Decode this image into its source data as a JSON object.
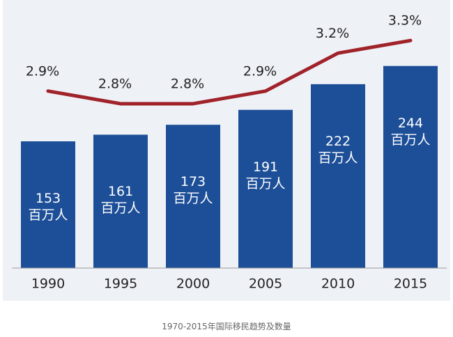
{
  "chart_data": {
    "type": "bar",
    "caption": "1970-2015年国际移民趋势及数量",
    "categories": [
      "1990",
      "1995",
      "2000",
      "2005",
      "2010",
      "2015"
    ],
    "series": [
      {
        "type": "bar",
        "color": "#1d4f98",
        "values": [
          153,
          161,
          173,
          191,
          222,
          244
        ],
        "value_labels": [
          "153\n百万人",
          "161\n百万人",
          "173\n百万人",
          "191\n百万人",
          "222\n百万人",
          "244\n百万人"
        ]
      },
      {
        "type": "line",
        "axis": "y2",
        "color": "#a0232a",
        "values": [
          2.9,
          2.8,
          2.8,
          2.9,
          3.2,
          3.3
        ],
        "value_labels": [
          "2.9%",
          "2.8%",
          "2.8%",
          "2.9%",
          "3.2%",
          "3.3%"
        ]
      }
    ],
    "ylim": [
      0,
      290
    ],
    "y2lim": [
      1.5,
      3.4
    ]
  }
}
